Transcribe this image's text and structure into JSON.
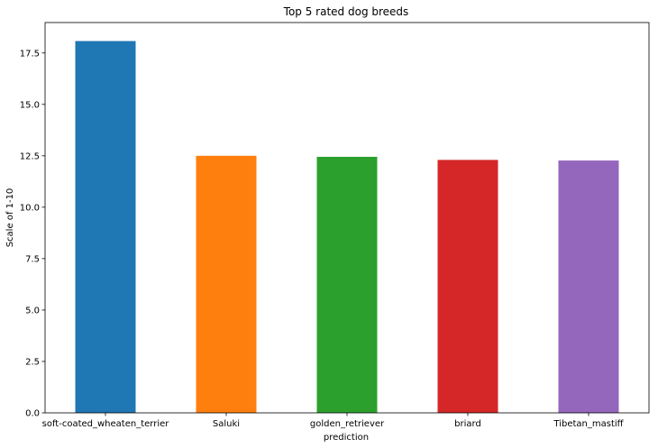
{
  "chart_data": {
    "type": "bar",
    "title": "Top 5 rated dog breeds",
    "xlabel": "prediction",
    "ylabel": "Scale of 1-10",
    "categories": [
      "soft-coated_wheaten_terrier",
      "Saluki",
      "golden_retriever",
      "briard",
      "Tibetan_mastiff"
    ],
    "values": [
      18.08,
      12.5,
      12.45,
      12.3,
      12.27
    ],
    "colors": [
      "#1f77b4",
      "#ff7f0e",
      "#2ca02c",
      "#d62728",
      "#9467bd"
    ],
    "ylim": [
      0,
      18.98
    ],
    "yticks": [
      "0.0",
      "2.5",
      "5.0",
      "7.5",
      "10.0",
      "12.5",
      "15.0",
      "17.5"
    ],
    "grid": false,
    "legend": "none"
  }
}
